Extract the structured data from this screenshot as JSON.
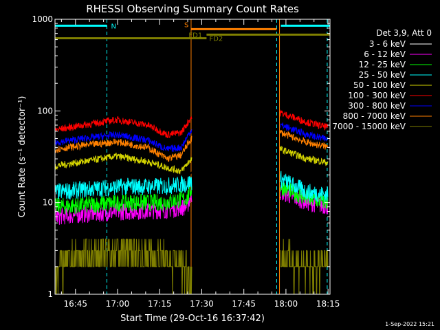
{
  "chart_data": {
    "type": "line",
    "title": "RHESSI Observing Summary Count Rates",
    "xlabel": "Start Time (29-Oct-16 16:37:42)",
    "ylabel": "Count Rate (s⁻¹ detector⁻¹)",
    "x_unit": "minutes after 16:37:42",
    "xlim": [
      0,
      98
    ],
    "ylim": [
      1,
      1000
    ],
    "y_scale": "log",
    "x_ticks": [
      {
        "t": 7.3,
        "label": "16:45"
      },
      {
        "t": 22.3,
        "label": "17:00"
      },
      {
        "t": 37.3,
        "label": "17:15"
      },
      {
        "t": 52.3,
        "label": "17:30"
      },
      {
        "t": 67.3,
        "label": "17:45"
      },
      {
        "t": 82.3,
        "label": "18:00"
      },
      {
        "t": 97.3,
        "label": "18:15"
      }
    ],
    "y_ticks": [
      {
        "v": 1,
        "label": "1"
      },
      {
        "v": 10,
        "label": "10"
      },
      {
        "v": 100,
        "label": "100"
      },
      {
        "v": 1000,
        "label": "1000"
      }
    ],
    "legend": {
      "header": "Det 3,9, Att 0",
      "placement": "right"
    },
    "data_gaps": [
      [
        48.8,
        80.0
      ]
    ],
    "series": [
      {
        "name": "3 - 6 keV",
        "color": "#000000",
        "values": [
          [
            0,
            12
          ],
          [
            10,
            12.5
          ],
          [
            22,
            13
          ],
          [
            35,
            14
          ],
          [
            47,
            15
          ],
          [
            48.5,
            20
          ],
          [
            80.5,
            22
          ],
          [
            90,
            19
          ],
          [
            98,
            17
          ]
        ]
      },
      {
        "name": "6 - 12 keV",
        "color": "#ff00ff",
        "values": [
          [
            0,
            7
          ],
          [
            12,
            7.5
          ],
          [
            25,
            8
          ],
          [
            38,
            8.2
          ],
          [
            47,
            9
          ],
          [
            48.5,
            12
          ],
          [
            80.5,
            13
          ],
          [
            90,
            10
          ],
          [
            98,
            9
          ]
        ]
      },
      {
        "name": "12 - 25 keV",
        "color": "#00ff00",
        "values": [
          [
            0,
            9
          ],
          [
            12,
            9.5
          ],
          [
            25,
            10
          ],
          [
            38,
            10
          ],
          [
            47,
            11
          ],
          [
            48.5,
            14
          ],
          [
            80.5,
            15
          ],
          [
            90,
            11
          ],
          [
            98,
            10
          ]
        ]
      },
      {
        "name": "25 - 50 keV",
        "color": "#00ffff",
        "values": [
          [
            0,
            13
          ],
          [
            12,
            14
          ],
          [
            25,
            15
          ],
          [
            38,
            15
          ],
          [
            47,
            16
          ],
          [
            48.5,
            17
          ],
          [
            80.5,
            18
          ],
          [
            90,
            13
          ],
          [
            98,
            12
          ]
        ]
      },
      {
        "name": "50 - 100 keV",
        "color": "#d4d400",
        "values": [
          [
            0,
            25
          ],
          [
            10,
            28
          ],
          [
            22,
            32
          ],
          [
            33,
            28
          ],
          [
            40,
            24
          ],
          [
            45,
            22
          ],
          [
            48.5,
            30
          ],
          [
            80.5,
            38
          ],
          [
            90,
            30
          ],
          [
            98,
            27
          ]
        ]
      },
      {
        "name": "100 - 300 keV",
        "color": "#ff0000",
        "values": [
          [
            0,
            62
          ],
          [
            10,
            70
          ],
          [
            22,
            80
          ],
          [
            33,
            70
          ],
          [
            40,
            55
          ],
          [
            45,
            58
          ],
          [
            48.5,
            85
          ],
          [
            80.5,
            95
          ],
          [
            90,
            75
          ],
          [
            98,
            65
          ]
        ]
      },
      {
        "name": "300 - 800 keV",
        "color": "#0000ff",
        "values": [
          [
            0,
            45
          ],
          [
            10,
            50
          ],
          [
            22,
            55
          ],
          [
            33,
            48
          ],
          [
            40,
            38
          ],
          [
            45,
            40
          ],
          [
            48.5,
            62
          ],
          [
            80.5,
            70
          ],
          [
            90,
            55
          ],
          [
            98,
            48
          ]
        ]
      },
      {
        "name": "800 - 7000 keV",
        "color": "#ff8000",
        "values": [
          [
            0,
            38
          ],
          [
            10,
            42
          ],
          [
            22,
            46
          ],
          [
            33,
            40
          ],
          [
            40,
            30
          ],
          [
            45,
            33
          ],
          [
            48.5,
            50
          ],
          [
            80.5,
            58
          ],
          [
            90,
            45
          ],
          [
            98,
            40
          ]
        ]
      },
      {
        "name": "7000 - 15000 keV",
        "color": "#808000",
        "values": [
          [
            0,
            2
          ],
          [
            10,
            2.5
          ],
          [
            22,
            3
          ],
          [
            35,
            2.5
          ],
          [
            47,
            2
          ],
          [
            48.5,
            1.5
          ],
          [
            80.5,
            2.5
          ],
          [
            90,
            2
          ],
          [
            98,
            2
          ]
        ]
      }
    ],
    "markers": [
      {
        "label": "N",
        "color": "#00ffff",
        "t0": 0,
        "t1": 18.5,
        "level": 850
      },
      {
        "label": "N",
        "color": "#00ffff",
        "t0": 80.5,
        "t1": 98,
        "level": 850
      },
      {
        "label": "S",
        "color": "#ff8000",
        "t0": 48.5,
        "t1": 79,
        "level": 780
      },
      {
        "label": "FD1",
        "color": "#808000",
        "t0": 54,
        "t1": 98,
        "level": 680
      },
      {
        "label": "FD2",
        "color": "#808000",
        "t0": 0,
        "t1": 54,
        "level": 620
      }
    ],
    "vlines": [
      {
        "t": 0,
        "color": "#00ffff"
      },
      {
        "t": 18.5,
        "color": "#00ffff"
      },
      {
        "t": 48.5,
        "color": "#ff8000"
      },
      {
        "t": 79,
        "color": "#00ffff"
      },
      {
        "t": 80,
        "color": "#ff8000"
      },
      {
        "t": 97,
        "color": "#00ffff"
      }
    ]
  },
  "footer": {
    "date": "1-Sep-2022 15:21"
  }
}
